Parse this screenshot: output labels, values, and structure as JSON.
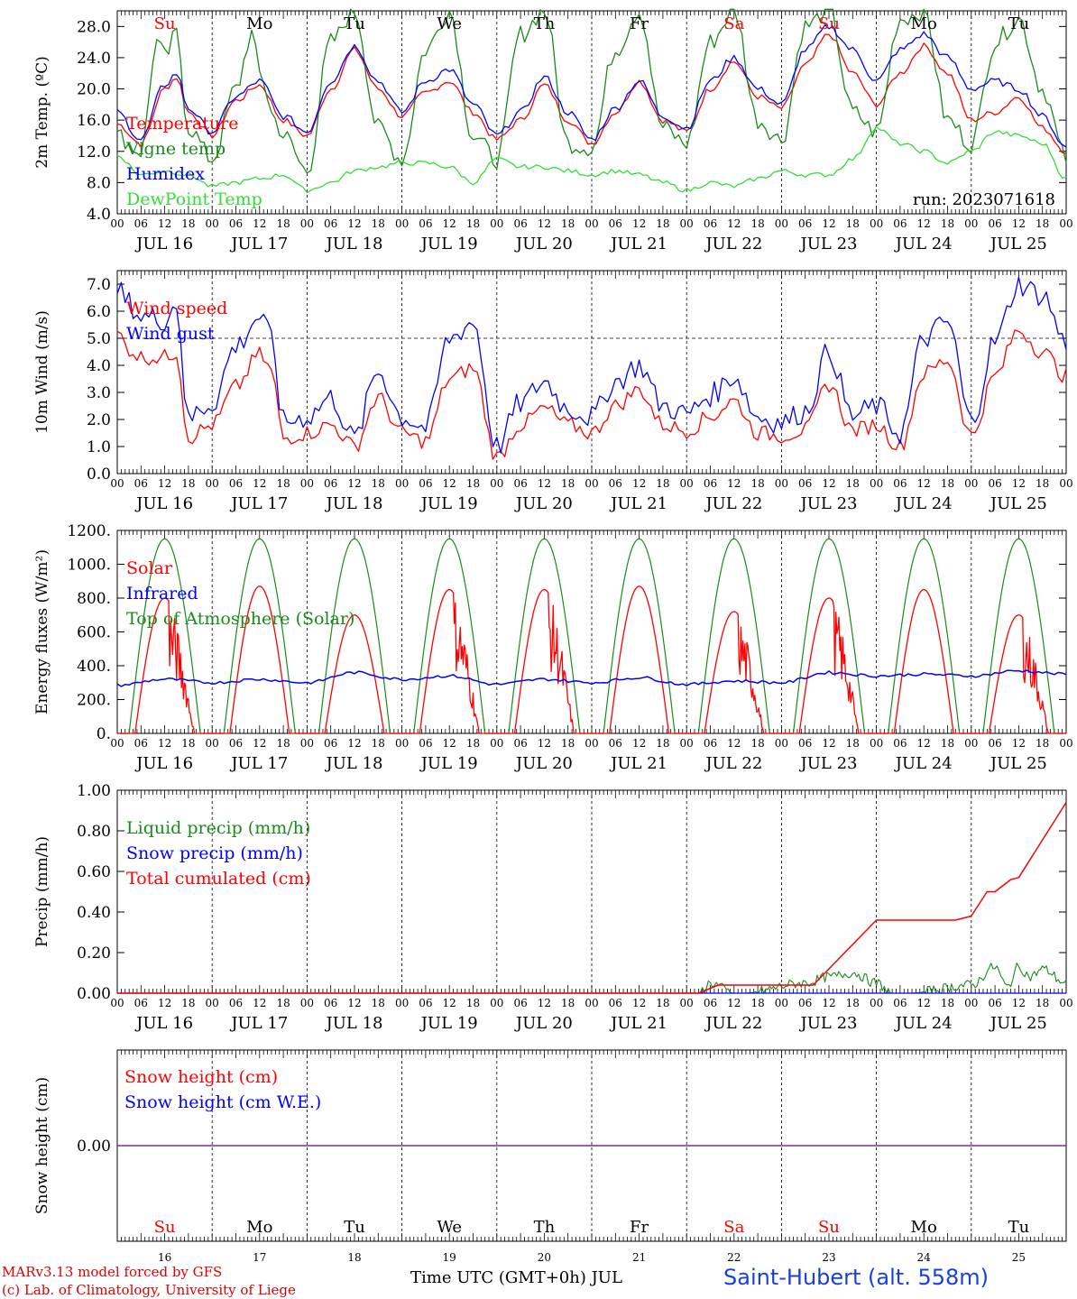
{
  "colors": {
    "temperature": "#ff0000",
    "vigne": "#1a8a1a",
    "humidex": "#0000ff",
    "dewpoint": "#33dd33",
    "wind_speed": "#ff0000",
    "wind_gust": "#0000ff",
    "solar": "#ff0000",
    "infrared": "#0000ff",
    "toa": "#1a8a1a",
    "liquid": "#1a8a1a",
    "snowp": "#0000ff",
    "cumul": "#ff0000",
    "snow_height": "#ff0000",
    "snow_we": "#0000ff",
    "weekend": "#ff0000",
    "weekday": "#000000",
    "station": "#1a3fe0",
    "credit": "#e00000"
  },
  "days": {
    "abbr": [
      "Su",
      "Mo",
      "Tu",
      "We",
      "Th",
      "Fr",
      "Sa",
      "Su",
      "Mo",
      "Tu"
    ],
    "weekend": [
      true,
      false,
      false,
      false,
      false,
      false,
      true,
      true,
      false,
      false
    ],
    "date_labels": [
      "JUL 16",
      "JUL 17",
      "JUL 18",
      "JUL 19",
      "JUL 20",
      "JUL 21",
      "JUL 22",
      "JUL 23",
      "JUL 24",
      "JUL 25"
    ],
    "day_numbers": [
      "16",
      "17",
      "18",
      "19",
      "20",
      "21",
      "22",
      "23",
      "24",
      "25"
    ],
    "hour_labels": [
      "00",
      "06",
      "12",
      "18"
    ],
    "last_hour": "00"
  },
  "chart_data": [
    {
      "type": "line",
      "ylabel": "2m Temp. (ºC)",
      "ylim": [
        4,
        30
      ],
      "yticks": [
        "4.0",
        "8.0",
        "12.0",
        "16.0",
        "20.0",
        "24.0",
        "28.0"
      ],
      "run_label": "run: 2023071618",
      "x_unit": "hours since JUL 16 00 UTC",
      "series": [
        {
          "name": "Temperature",
          "x": [
            0,
            6,
            12,
            15,
            18,
            24,
            30,
            36,
            42,
            48,
            54,
            60,
            66,
            72,
            78,
            84,
            90,
            96,
            102,
            108,
            114,
            120,
            126,
            132,
            138,
            144,
            150,
            156,
            162,
            168,
            174,
            180,
            186,
            192,
            198,
            204,
            210,
            216,
            222,
            228,
            234,
            240
          ],
          "y": [
            15.5,
            13,
            20,
            21.5,
            17,
            14,
            18.5,
            20.5,
            16,
            14,
            20,
            25,
            20,
            16.5,
            19.5,
            21,
            17,
            13.5,
            16,
            20.5,
            16,
            13,
            17,
            21,
            16,
            14.5,
            20,
            23.5,
            19,
            17.5,
            23,
            27,
            22,
            18,
            22,
            25.5,
            22,
            16,
            17,
            19,
            15,
            12
          ]
        },
        {
          "name": "Vigne temp",
          "x": [
            0,
            6,
            10,
            12,
            15,
            18,
            24,
            30,
            34,
            36,
            40,
            42,
            48,
            54,
            60,
            66,
            72,
            78,
            84,
            90,
            96,
            102,
            108,
            114,
            120,
            126,
            132,
            138,
            144,
            150,
            156,
            162,
            168,
            174,
            180,
            186,
            192,
            198,
            204,
            210,
            216,
            222,
            228,
            234,
            240
          ],
          "y": [
            14,
            12,
            26,
            24,
            27,
            15,
            11,
            20,
            27,
            22,
            16,
            14,
            9.5,
            26,
            30,
            15,
            11,
            25,
            30,
            14,
            11,
            27,
            30,
            13,
            12.5,
            25,
            30,
            15,
            13,
            26,
            30,
            16,
            13.5,
            28,
            30,
            17,
            14.5,
            29,
            30,
            16,
            13,
            26,
            29,
            20,
            11
          ]
        },
        {
          "name": "Humidex",
          "x": [
            0,
            6,
            12,
            15,
            18,
            24,
            30,
            36,
            42,
            48,
            54,
            60,
            66,
            72,
            78,
            84,
            90,
            96,
            102,
            108,
            114,
            120,
            126,
            132,
            138,
            144,
            150,
            156,
            162,
            168,
            174,
            180,
            186,
            192,
            198,
            204,
            210,
            216,
            222,
            228,
            234,
            240
          ],
          "y": [
            17,
            13.5,
            20.5,
            22,
            17.5,
            14.5,
            19,
            21,
            16.5,
            14.5,
            21,
            25.5,
            21,
            17,
            21,
            22.5,
            18,
            14,
            17,
            21.5,
            17,
            13.5,
            17.5,
            21,
            16.5,
            15,
            21,
            24,
            20,
            18,
            25,
            28,
            25,
            21,
            25,
            27,
            24,
            20,
            21,
            20,
            16.5,
            12.5
          ]
        },
        {
          "name": "DewPoint Temp",
          "x": [
            0,
            6,
            12,
            18,
            24,
            30,
            36,
            42,
            48,
            54,
            60,
            66,
            72,
            78,
            84,
            90,
            96,
            102,
            108,
            114,
            120,
            126,
            132,
            138,
            144,
            150,
            156,
            162,
            168,
            174,
            180,
            186,
            192,
            198,
            204,
            210,
            216,
            222,
            228,
            234,
            240
          ],
          "y": [
            11.5,
            9,
            9.5,
            9,
            7.5,
            8,
            8.5,
            9,
            7,
            8,
            9.5,
            10,
            10.5,
            10.5,
            10,
            8,
            11,
            10,
            10,
            9.5,
            9,
            9.5,
            9,
            8,
            7,
            8,
            7.5,
            8.5,
            9.5,
            9,
            9,
            11,
            15,
            13,
            12,
            10.5,
            12,
            14.5,
            14,
            13,
            8.5
          ]
        }
      ]
    },
    {
      "type": "line",
      "ylabel": "10m Wind (m/s)",
      "ylim": [
        0,
        7.5
      ],
      "yticks": [
        "0.0",
        "1.0",
        "2.0",
        "3.0",
        "4.0",
        "5.0",
        "6.0",
        "7.0"
      ],
      "reference_line": 5.0,
      "x_unit": "hours since JUL 16 00 UTC",
      "series": [
        {
          "name": "Wind speed",
          "x": [
            0,
            3,
            6,
            12,
            15,
            18,
            21,
            24,
            30,
            36,
            39,
            42,
            48,
            54,
            60,
            66,
            72,
            78,
            84,
            90,
            96,
            102,
            108,
            114,
            120,
            126,
            132,
            138,
            144,
            150,
            156,
            162,
            168,
            174,
            180,
            186,
            192,
            198,
            204,
            210,
            216,
            222,
            228,
            234,
            240
          ],
          "y": [
            5.2,
            4.6,
            4.3,
            4.3,
            4.5,
            1.3,
            1.6,
            1.8,
            3.2,
            4.4,
            3.8,
            1.3,
            1.5,
            1.8,
            1.0,
            2.8,
            1.5,
            1.2,
            3.5,
            3.9,
            0.6,
            1.8,
            2.4,
            1.8,
            1.5,
            2.5,
            3.1,
            1.8,
            1.6,
            2.1,
            2.7,
            1.5,
            1.4,
            1.6,
            3.3,
            1.6,
            1.8,
            1.0,
            3.7,
            4.2,
            1.4,
            3.6,
            5.3,
            4.5,
            3.6
          ]
        },
        {
          "name": "Wind gust",
          "x": [
            0,
            3,
            6,
            12,
            15,
            18,
            21,
            24,
            30,
            36,
            39,
            42,
            48,
            54,
            60,
            66,
            72,
            78,
            84,
            90,
            96,
            102,
            108,
            114,
            120,
            126,
            132,
            138,
            144,
            150,
            156,
            162,
            168,
            174,
            180,
            186,
            192,
            198,
            204,
            210,
            216,
            222,
            228,
            234,
            240
          ],
          "y": [
            6.8,
            6.3,
            5.8,
            5.7,
            6.3,
            1.9,
            2.4,
            2.6,
            4.7,
            5.8,
            5.0,
            1.9,
            2.1,
            2.8,
            1.3,
            3.8,
            2.1,
            1.7,
            5.0,
            5.6,
            1.0,
            2.6,
            3.4,
            2.4,
            2.1,
            3.4,
            4.0,
            2.5,
            2.2,
            2.9,
            3.6,
            2.1,
            1.9,
            2.3,
            4.5,
            2.1,
            2.5,
            1.5,
            5.0,
            5.6,
            1.9,
            4.9,
            7.0,
            6.6,
            4.8
          ]
        }
      ]
    },
    {
      "type": "line",
      "ylabel": "Energy fluxes (W/m²)",
      "ylim": [
        0,
        1200
      ],
      "yticks": [
        "0.",
        "200.",
        "400.",
        "600.",
        "800.",
        "1000.",
        "1200."
      ],
      "x_unit": "hours since JUL 16 00 UTC",
      "toa_peak": 1150,
      "solar_daily_peaks": [
        800,
        870,
        700,
        850,
        850,
        870,
        720,
        800,
        850,
        700
      ],
      "series": [
        {
          "name": "Solar"
        },
        {
          "name": "Infrared",
          "x": [
            0,
            12,
            24,
            36,
            48,
            60,
            72,
            84,
            96,
            108,
            120,
            132,
            144,
            156,
            168,
            180,
            192,
            204,
            216,
            228,
            240
          ],
          "y": [
            285,
            320,
            300,
            320,
            300,
            360,
            320,
            340,
            290,
            320,
            300,
            330,
            290,
            310,
            300,
            360,
            340,
            350,
            340,
            370,
            350
          ]
        },
        {
          "name": "Top of Atmosphere (Solar)"
        }
      ]
    },
    {
      "type": "line",
      "ylabel": "Precip (mm/h)",
      "ylim": [
        0,
        1.0
      ],
      "yticks": [
        "0.00",
        "0.20",
        "0.40",
        "0.60",
        "0.80",
        "1.00"
      ],
      "x_unit": "hours since JUL 16 00 UTC",
      "series": [
        {
          "name": "Liquid precip (mm/h)",
          "x": [
            0,
            147,
            150,
            156,
            158,
            174,
            180,
            186,
            192,
            196,
            200,
            216,
            222,
            225,
            228,
            231,
            234,
            240
          ],
          "y": [
            0,
            0,
            0.05,
            0.0,
            0,
            0.05,
            0.08,
            0.1,
            0.05,
            0,
            0,
            0.04,
            0.13,
            0.03,
            0.13,
            0.08,
            0.12,
            0.05
          ]
        },
        {
          "name": "Snow precip (mm/h)",
          "x": [
            0,
            240
          ],
          "y": [
            0,
            0
          ]
        },
        {
          "name": "Total cumulated (cm)",
          "x": [
            0,
            147,
            152,
            176,
            192,
            204,
            212,
            216,
            220,
            222,
            226,
            228,
            240
          ],
          "y": [
            0,
            0,
            0.04,
            0.04,
            0.36,
            0.36,
            0.36,
            0.38,
            0.5,
            0.5,
            0.56,
            0.57,
            0.94
          ]
        }
      ]
    },
    {
      "type": "line",
      "ylabel": "Snow height (cm)",
      "yticks": [
        "0.00"
      ],
      "series": [
        {
          "name": "Snow height (cm)",
          "x": [
            0,
            240
          ],
          "y": [
            0,
            0
          ]
        },
        {
          "name": "Snow height (cm W.E.)",
          "x": [
            0,
            240
          ],
          "y": [
            0,
            0
          ]
        }
      ]
    }
  ],
  "footer": {
    "credit_line1": "MARv3.13 model forced by GFS",
    "credit_line2": "(c) Lab. of Climatology, University of Liege",
    "xlabel": "Time UTC (GMT+0h) JUL",
    "station": "Saint-Hubert (alt. 558m)"
  }
}
